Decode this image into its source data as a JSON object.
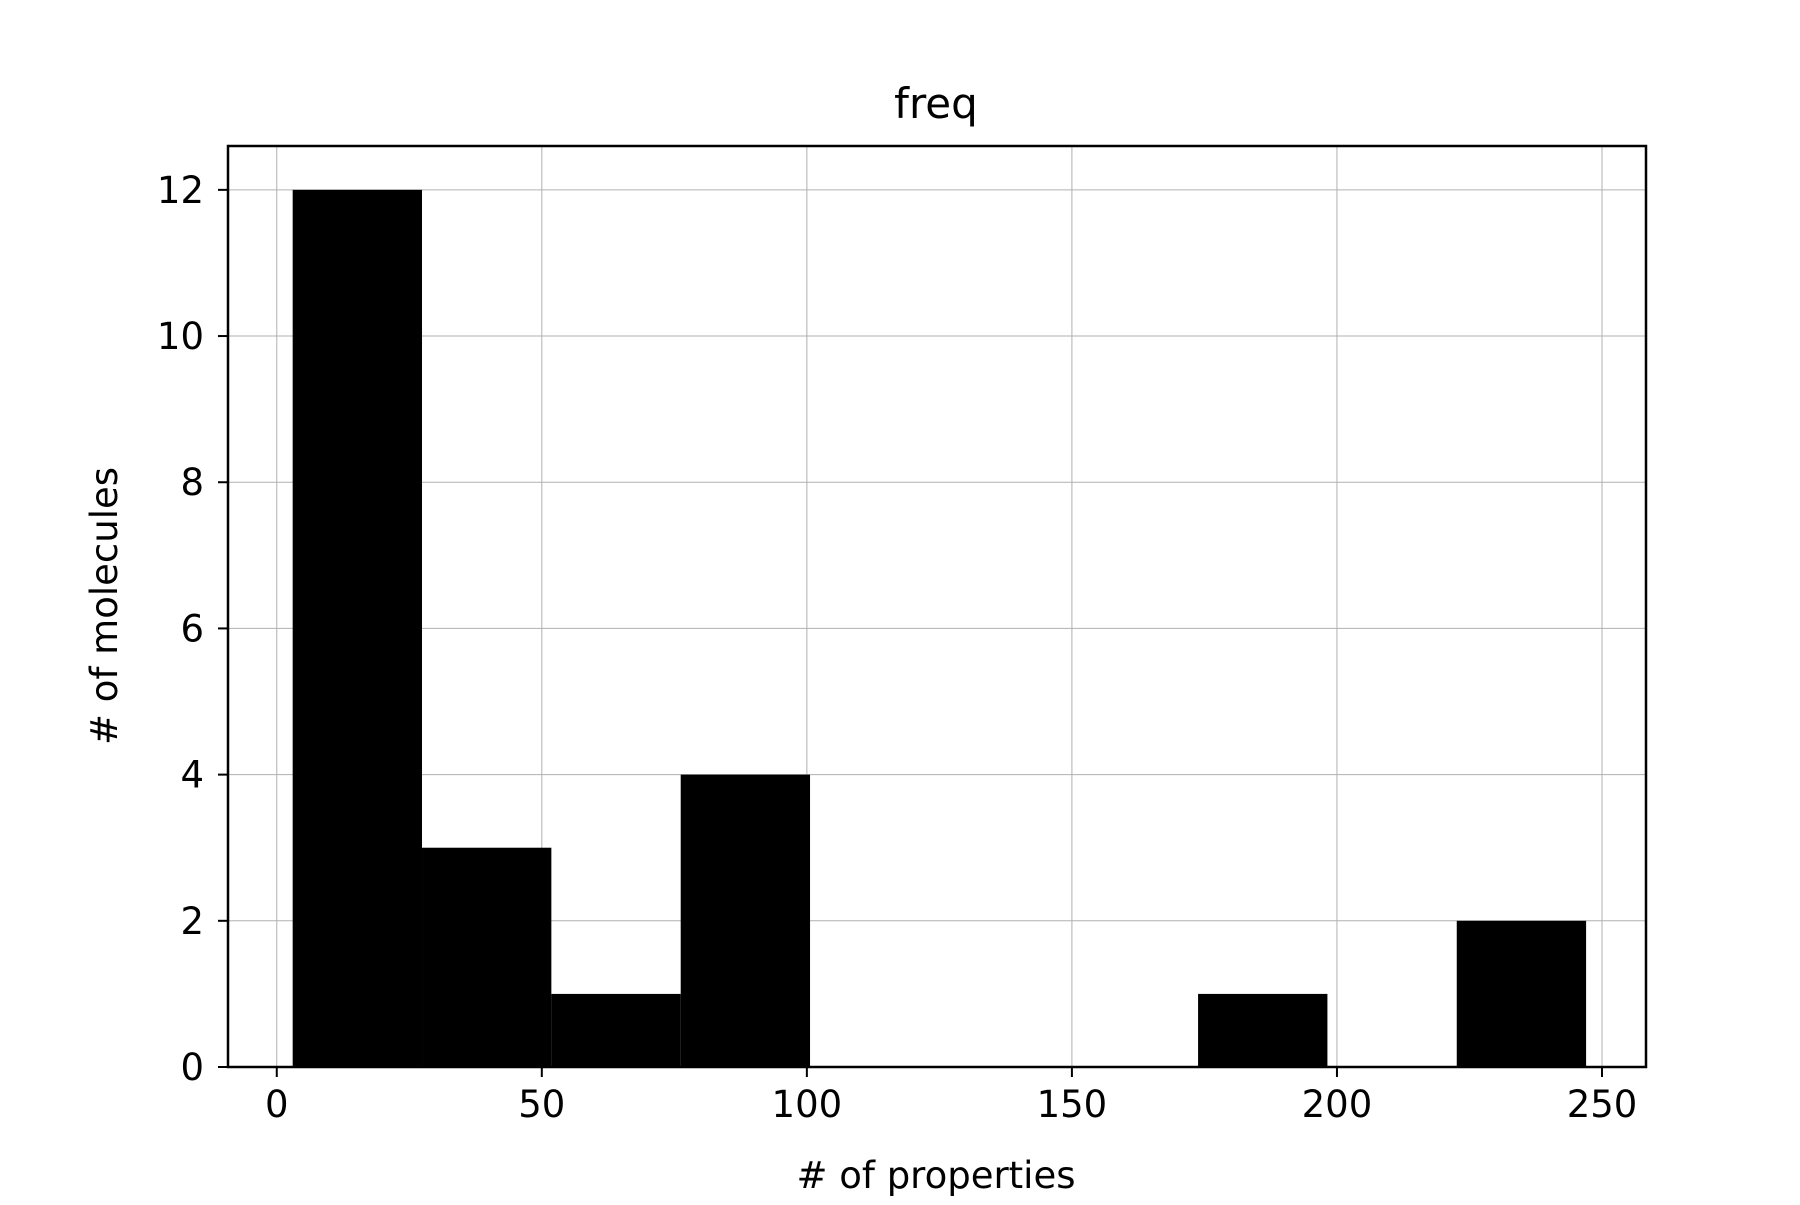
{
  "chart_data": {
    "type": "bar",
    "title": "freq",
    "xlabel": "# of properties",
    "ylabel": "# of molecules",
    "xlim": [
      -9.2,
      258.3
    ],
    "ylim": [
      0,
      12.6
    ],
    "xticks": [
      0,
      50,
      100,
      150,
      200,
      250
    ],
    "yticks": [
      0,
      2,
      4,
      6,
      8,
      10,
      12
    ],
    "grid": true,
    "bar_color": "#000000",
    "bins": [
      {
        "x0": 3.0,
        "x1": 27.4,
        "count": 12
      },
      {
        "x0": 27.4,
        "x1": 51.8,
        "count": 3
      },
      {
        "x0": 51.8,
        "x1": 76.2,
        "count": 1
      },
      {
        "x0": 76.2,
        "x1": 100.6,
        "count": 4
      },
      {
        "x0": 100.6,
        "x1": 125.0,
        "count": 0
      },
      {
        "x0": 125.0,
        "x1": 149.4,
        "count": 0
      },
      {
        "x0": 149.4,
        "x1": 173.8,
        "count": 0
      },
      {
        "x0": 173.8,
        "x1": 198.2,
        "count": 1
      },
      {
        "x0": 198.2,
        "x1": 222.6,
        "count": 0
      },
      {
        "x0": 222.6,
        "x1": 247.0,
        "count": 2
      }
    ]
  }
}
